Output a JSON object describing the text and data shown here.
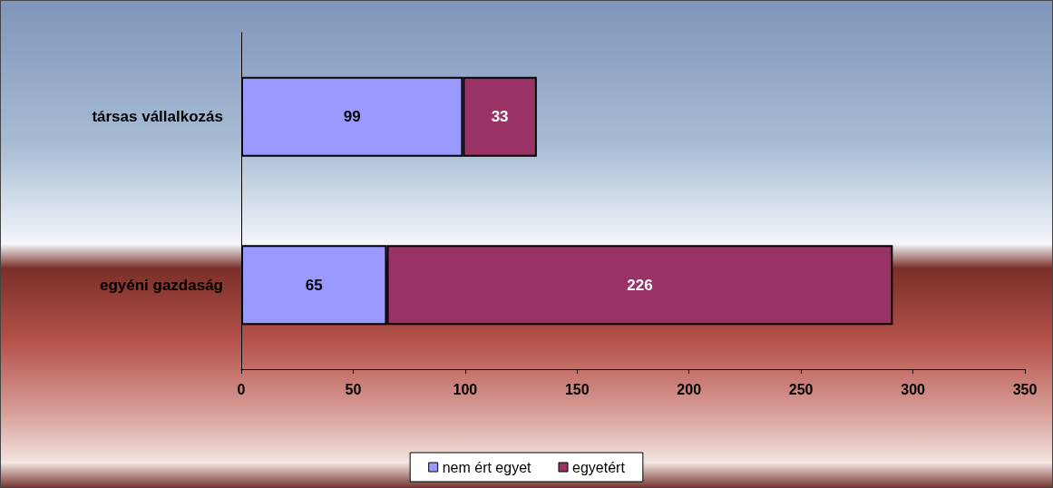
{
  "chart_data": {
    "type": "bar",
    "orientation": "horizontal",
    "stacked": true,
    "categories": [
      "társas vállalkozás",
      "egyéni gazdaság"
    ],
    "series": [
      {
        "name": "nem ért egyet",
        "color": "#9999ff",
        "values": [
          99,
          65
        ]
      },
      {
        "name": "egyetért",
        "color": "#993366",
        "values": [
          33,
          226
        ]
      }
    ],
    "xlim": [
      0,
      350
    ],
    "xticks": [
      0,
      50,
      100,
      150,
      200,
      250,
      300,
      350
    ],
    "data_labels": true,
    "legend": "bottom",
    "grid": false
  }
}
